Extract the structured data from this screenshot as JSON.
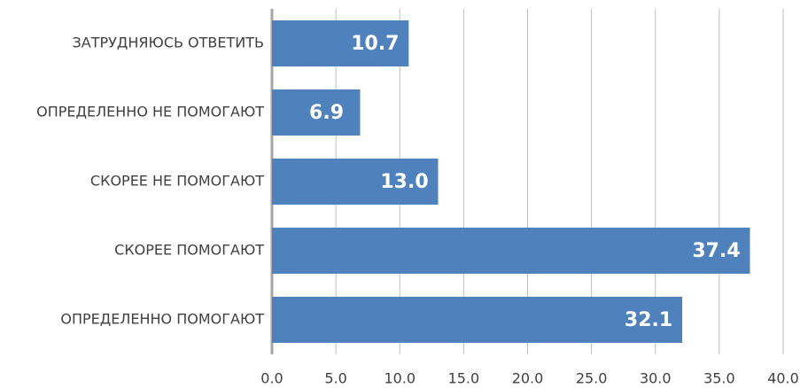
{
  "chart_data": {
    "type": "hbar",
    "categories": [
      "ЗАТРУДНЯЮСЬ ОТВЕТИТЬ",
      "ОПРЕДЕЛЕННО НЕ ПОМОГАЮТ",
      "СКОРЕЕ НЕ ПОМОГАЮТ",
      "СКОРЕЕ ПОМОГАЮТ",
      "ОПРЕДЕЛЕННО ПОМОГАЮТ"
    ],
    "values": [
      10.7,
      6.9,
      13.0,
      37.4,
      32.1
    ],
    "value_labels": [
      "10.7",
      "6.9",
      "13.0",
      "37.4",
      "32.1"
    ],
    "color": "#4f81bd",
    "xlim": [
      0,
      40
    ],
    "xticks": [
      {
        "value": 0,
        "label": "0.0"
      },
      {
        "value": 5,
        "label": "5.0"
      },
      {
        "value": 10,
        "label": "10.0"
      },
      {
        "value": 15,
        "label": "15.0"
      },
      {
        "value": 20,
        "label": "20.0"
      },
      {
        "value": 25,
        "label": "25.0"
      },
      {
        "value": 30,
        "label": "30.0"
      },
      {
        "value": 35,
        "label": "35.0"
      },
      {
        "value": 40,
        "label": "40.0"
      }
    ],
    "grid": true
  }
}
